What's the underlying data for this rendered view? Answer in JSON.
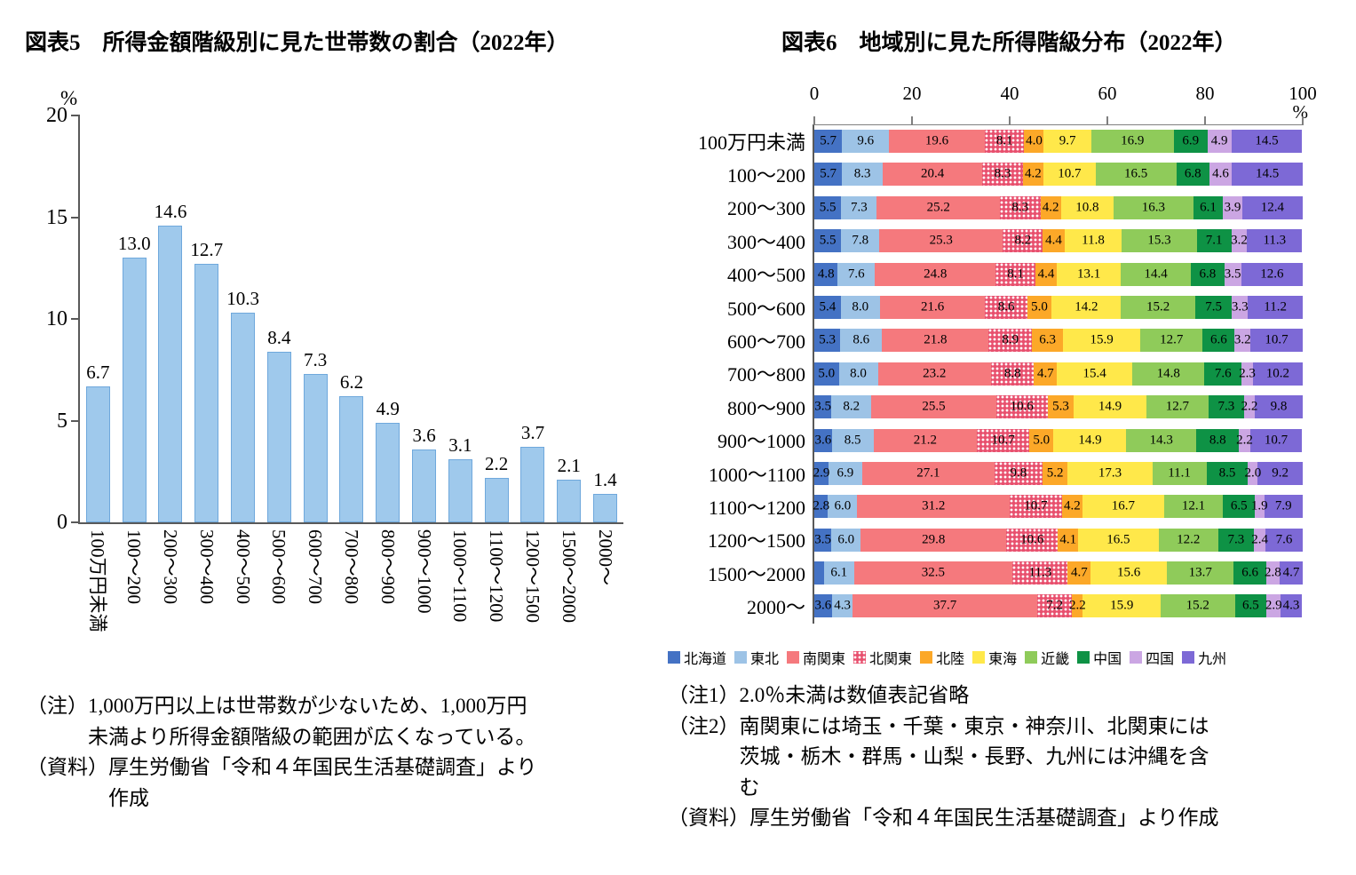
{
  "figure5": {
    "notes": [
      {
        "prefix": "（注）",
        "text": "1,000万円以上は世帯数が少ないため、1,000万円\n未満より所得金額階級の範囲が広くなっている。"
      },
      {
        "prefix": "（資料）",
        "text": "厚生労働省「令和４年国民生活基礎調査」より\n作成"
      }
    ]
  },
  "figure6": {
    "notes": [
      {
        "prefix": "（注1）",
        "text": "2.0％未満は数値表記省略"
      },
      {
        "prefix": "（注2）",
        "text": "南関東には埼玉・千葉・東京・神奈川、北関東には\n茨城・栃木・群馬・山梨・長野、九州には沖縄を含\nむ"
      },
      {
        "prefix": "（資料）",
        "text": "厚生労働省「令和４年国民生活基礎調査」より作成"
      }
    ]
  },
  "chart_data": [
    {
      "type": "bar",
      "title": "図表5　所得金額階級別に見た世帯数の割合（2022年）",
      "ylabel": "%",
      "xlabel": "",
      "ylim": [
        0,
        20
      ],
      "yticks": [
        0,
        5,
        10,
        15,
        20
      ],
      "grid": false,
      "bar_color": "#9FC9EC",
      "bar_border": "#6FA8DC",
      "categories": [
        "100万円未満",
        "100～200",
        "200～300",
        "300～400",
        "400～500",
        "500～600",
        "600～700",
        "700～800",
        "800～900",
        "900～1000",
        "1000～1100",
        "1100～1200",
        "1200～1500",
        "1500～2000",
        "2000～"
      ],
      "values": [
        6.7,
        13.0,
        14.6,
        12.7,
        10.3,
        8.4,
        7.3,
        6.2,
        4.9,
        3.6,
        3.1,
        2.2,
        3.7,
        2.1,
        1.4
      ]
    },
    {
      "type": "bar-horizontal-stacked",
      "title": "図表6　地域別に見た所得階級分布（2022年）",
      "xlabel": "%",
      "xlim": [
        0,
        100
      ],
      "xticks": [
        0,
        20,
        40,
        60,
        80,
        100
      ],
      "grid": false,
      "legend_position": "bottom",
      "label_rule": "2.0％未満は数値表記省略",
      "categories": [
        "100万円未満",
        "100～200",
        "200～300",
        "300～400",
        "400～500",
        "500～600",
        "600～700",
        "700～800",
        "800～900",
        "900～1000",
        "1000～1100",
        "1100～1200",
        "1200～1500",
        "1500～2000",
        "2000～"
      ],
      "series": [
        {
          "name": "北海道",
          "color": "#4472C4",
          "values": [
            5.7,
            5.7,
            5.5,
            5.5,
            4.8,
            5.4,
            5.3,
            5.0,
            3.5,
            3.6,
            2.9,
            2.8,
            3.5,
            2.0,
            3.6
          ],
          "no_label_at": [
            13
          ]
        },
        {
          "name": "東北",
          "color": "#9DC3E6",
          "values": [
            9.6,
            8.3,
            7.3,
            7.8,
            7.6,
            8.0,
            8.6,
            8.0,
            8.2,
            8.5,
            6.9,
            6.0,
            6.0,
            6.1,
            4.3
          ]
        },
        {
          "name": "南関東",
          "color": "#F5797D",
          "values": [
            19.6,
            20.4,
            25.2,
            25.3,
            24.8,
            21.6,
            21.8,
            23.2,
            25.5,
            21.2,
            27.1,
            31.2,
            29.8,
            32.5,
            37.7
          ]
        },
        {
          "name": "北関東",
          "color": "#E8506E",
          "pattern": "white-dots",
          "values": [
            8.1,
            8.3,
            8.3,
            8.2,
            8.1,
            8.6,
            8.9,
            8.8,
            10.6,
            10.7,
            9.8,
            10.7,
            10.6,
            11.3,
            7.2
          ]
        },
        {
          "name": "北陸",
          "color": "#FCA828",
          "values": [
            4.0,
            4.2,
            4.2,
            4.4,
            4.4,
            5.0,
            6.3,
            4.7,
            5.3,
            5.0,
            5.2,
            4.2,
            4.1,
            4.7,
            2.2
          ]
        },
        {
          "name": "東海",
          "color": "#FFE84A",
          "values": [
            9.7,
            10.7,
            10.8,
            11.8,
            13.1,
            14.2,
            15.9,
            15.4,
            14.9,
            14.9,
            17.3,
            16.7,
            16.5,
            15.6,
            15.9
          ]
        },
        {
          "name": "近畿",
          "color": "#8FCB5A",
          "values": [
            16.9,
            16.5,
            16.3,
            15.3,
            14.4,
            15.2,
            12.7,
            14.8,
            12.7,
            14.3,
            11.1,
            12.1,
            12.2,
            13.7,
            15.2
          ]
        },
        {
          "name": "中国",
          "color": "#0E9245",
          "values": [
            6.9,
            6.8,
            6.1,
            7.1,
            6.8,
            7.5,
            6.6,
            7.6,
            7.3,
            8.8,
            8.5,
            6.5,
            7.3,
            6.6,
            6.5
          ]
        },
        {
          "name": "四国",
          "color": "#CBA6E3",
          "values": [
            4.9,
            4.6,
            3.9,
            3.2,
            3.5,
            3.3,
            3.2,
            2.3,
            2.2,
            2.2,
            2.0,
            1.9,
            2.4,
            2.8,
            2.9
          ]
        },
        {
          "name": "九州",
          "color": "#7D69D6",
          "values": [
            14.5,
            14.5,
            12.4,
            11.3,
            12.6,
            11.2,
            10.7,
            10.2,
            9.8,
            10.7,
            9.2,
            7.9,
            7.6,
            4.7,
            4.3
          ]
        }
      ]
    }
  ]
}
